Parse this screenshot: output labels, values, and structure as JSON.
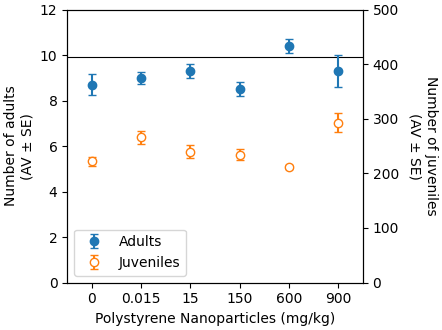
{
  "chart_data": {
    "type": "scatter",
    "xlabel": "Polystyrene Nanoparticles (mg/kg)",
    "ylabel": "Number of adults\n(AV ± SE)",
    "y2label": "Number of juveniles\n(AV ± SE)",
    "categories": [
      "0",
      "0.015",
      "15",
      "150",
      "600",
      "900"
    ],
    "series": [
      {
        "name": "Adults",
        "values": [
          8.7,
          9.0,
          9.3,
          8.5,
          10.4,
          9.3
        ],
        "errors": [
          0.45,
          0.25,
          0.3,
          0.3,
          0.3,
          0.7
        ],
        "marker": "filled"
      },
      {
        "name": "Juveniles",
        "axis": "y2",
        "values": [
          222,
          266,
          240,
          234,
          212,
          293
        ],
        "errors": [
          8,
          12,
          12,
          10,
          4,
          18
        ],
        "marker": "open"
      }
    ],
    "ylim": [
      0,
      12
    ],
    "yticks": [
      0,
      2,
      4,
      6,
      8,
      10,
      12
    ],
    "y2lim": [
      0,
      500
    ],
    "y2ticks": [
      0,
      100,
      200,
      300,
      400,
      500
    ],
    "hline": 9.9,
    "legend": "lower left"
  }
}
